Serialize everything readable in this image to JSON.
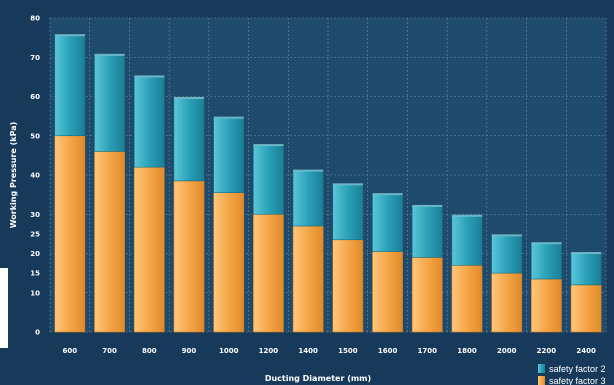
{
  "chart_data": {
    "type": "bar",
    "stacked": true,
    "xlabel": "Ducting Diameter (mm)",
    "ylabel": "Working Pressure (kPa)",
    "ylim": [
      0,
      80
    ],
    "yticks": [
      0,
      10,
      15,
      20,
      25,
      30,
      40,
      50,
      60,
      70,
      80
    ],
    "categories": [
      "600",
      "700",
      "800",
      "900",
      "1000",
      "1200",
      "1400",
      "1500",
      "1600",
      "1700",
      "1800",
      "2000",
      "2200",
      "2400"
    ],
    "series": [
      {
        "name": "safety factor 3",
        "color": "#f2a244",
        "values": [
          50,
          46,
          42,
          38.5,
          35.5,
          30,
          27,
          23.5,
          20.5,
          19,
          17,
          15,
          13.5,
          12
        ]
      },
      {
        "name": "safety factor 2",
        "color": "#2fa6bd",
        "values": [
          25.5,
          24.5,
          23,
          21,
          19,
          17.5,
          14,
          14,
          14.5,
          13,
          12.5,
          9.5,
          9,
          8
        ]
      }
    ],
    "grid": true,
    "legend_position": "bottom-right"
  }
}
